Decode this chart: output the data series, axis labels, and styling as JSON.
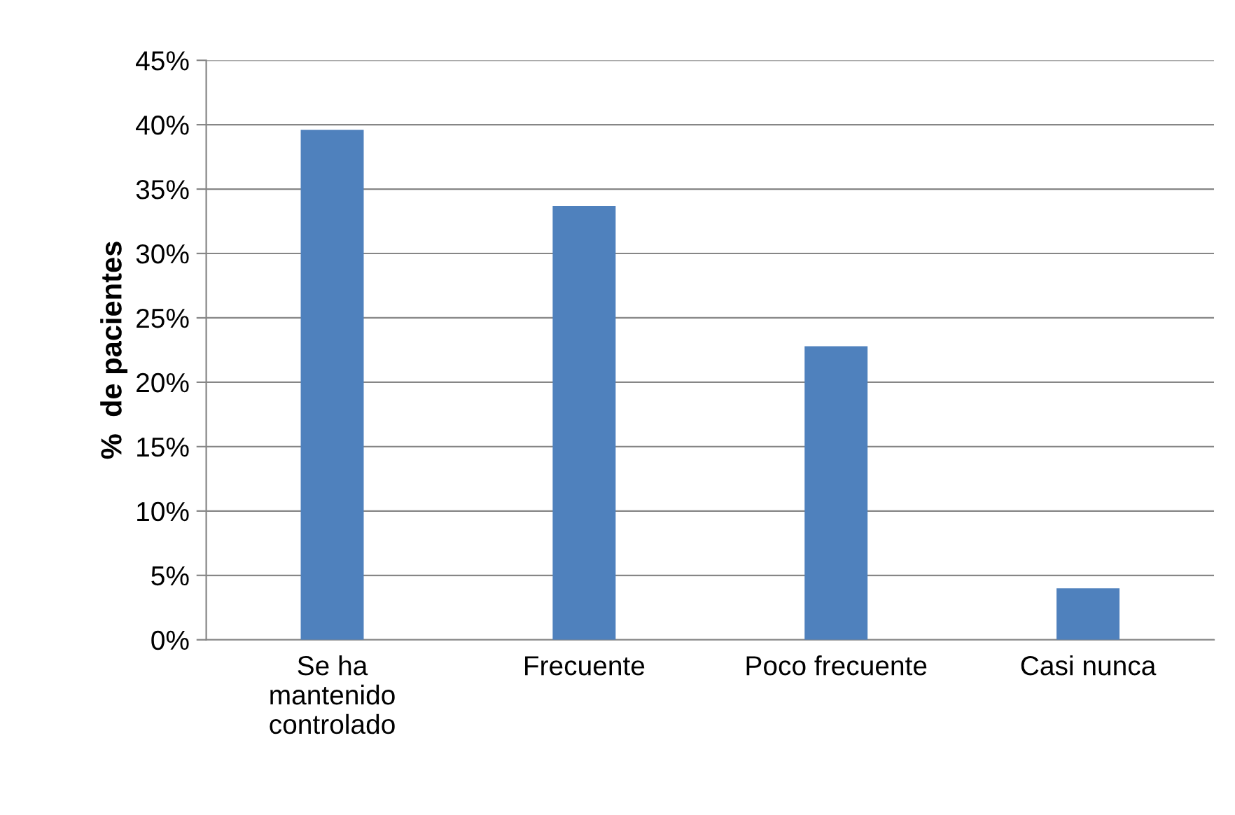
{
  "chart_data": {
    "type": "bar",
    "ylabel": "%  de pacientes",
    "categories": [
      "Se ha\nmantenido\ncontrolado",
      "Frecuente",
      "Poco frecuente",
      "Casi nunca"
    ],
    "values": [
      39.6,
      33.7,
      22.8,
      4.0
    ],
    "color": "#4f81bd",
    "ylim": [
      0,
      45
    ],
    "yticks": [
      {
        "value": 0,
        "label": "0%"
      },
      {
        "value": 5,
        "label": "5%"
      },
      {
        "value": 10,
        "label": "10%"
      },
      {
        "value": 15,
        "label": "15%"
      },
      {
        "value": 20,
        "label": "20%"
      },
      {
        "value": 25,
        "label": "25%"
      },
      {
        "value": 30,
        "label": "30%"
      },
      {
        "value": 35,
        "label": "35%"
      },
      {
        "value": 40,
        "label": "40%"
      },
      {
        "value": 45,
        "label": "45%"
      }
    ],
    "grid": "y"
  }
}
